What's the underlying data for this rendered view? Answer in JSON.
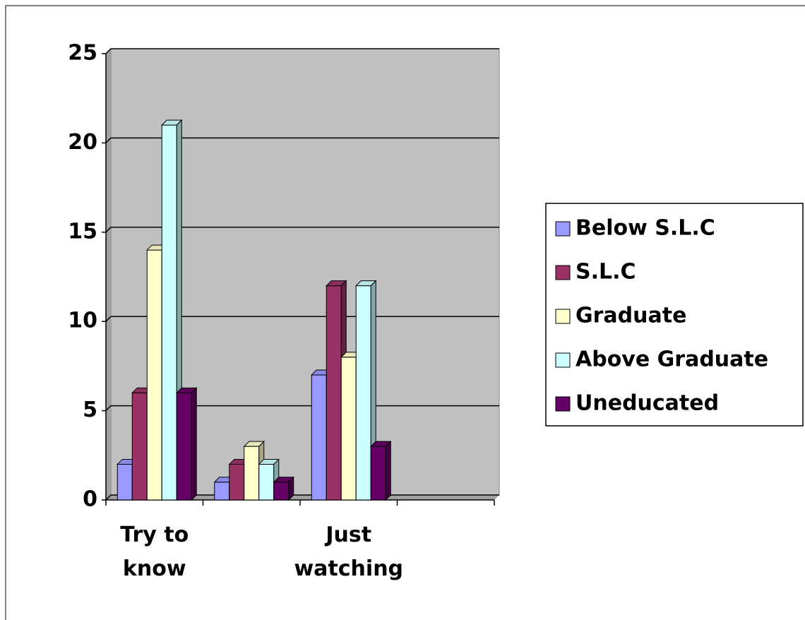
{
  "chart_data": {
    "type": "bar3d",
    "categories": [
      "Try to know",
      null,
      "Just watching",
      null
    ],
    "series": [
      {
        "name": "Below S.L.C",
        "color": "#9999ff",
        "values": [
          2,
          1,
          7,
          null
        ]
      },
      {
        "name": "S.L.C",
        "color": "#993366",
        "values": [
          6,
          2,
          12,
          null
        ]
      },
      {
        "name": "Graduate",
        "color": "#ffffcc",
        "values": [
          14,
          3,
          8,
          null
        ]
      },
      {
        "name": "Above Graduate",
        "color": "#ccffff",
        "values": [
          21,
          2,
          12,
          null
        ]
      },
      {
        "name": "Uneducated",
        "color": "#660066",
        "values": [
          6,
          1,
          3,
          null
        ]
      }
    ],
    "ylim": [
      0,
      25
    ],
    "yticks": [
      0,
      5,
      10,
      15,
      20,
      25
    ],
    "grid": true,
    "legend": "right"
  }
}
